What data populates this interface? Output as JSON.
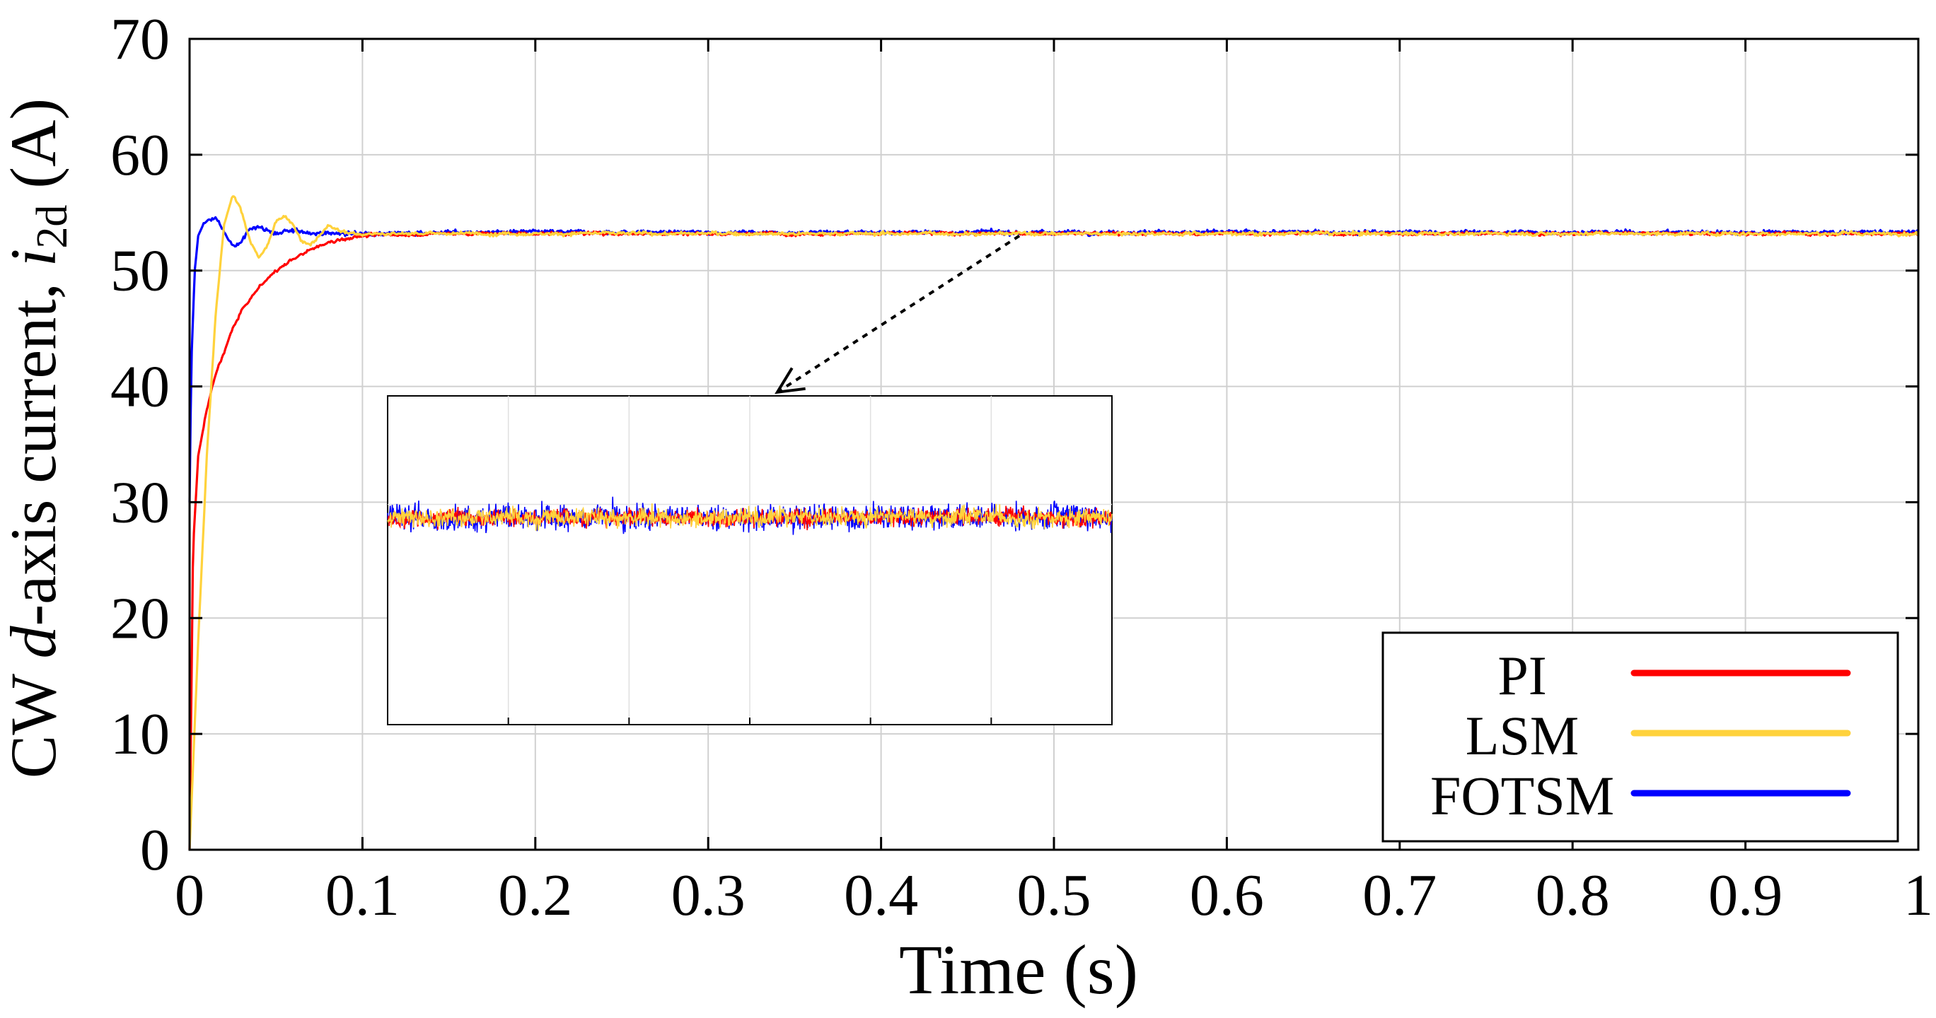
{
  "chart_data": {
    "type": "line",
    "title": "",
    "xlabel": "Time (s)",
    "ylabel": {
      "prefix": "CW ",
      "italic_part": "d",
      "middle": "-axis current, ",
      "symbol": "i",
      "subscript": "2d",
      "suffix": " (A)"
    },
    "xlim": [
      0,
      1
    ],
    "ylim": [
      0,
      70
    ],
    "xticks": [
      0,
      0.1,
      0.2,
      0.3,
      0.4,
      0.5,
      0.6,
      0.7,
      0.8,
      0.9,
      1
    ],
    "xtick_labels": [
      "0",
      "0.1",
      "0.2",
      "0.3",
      "0.4",
      "0.5",
      "0.6",
      "0.7",
      "0.8",
      "0.9",
      "1"
    ],
    "yticks": [
      0,
      10,
      20,
      30,
      40,
      50,
      60,
      70
    ],
    "ytick_labels": [
      "0",
      "10",
      "20",
      "30",
      "40",
      "50",
      "60",
      "70"
    ],
    "grid": true,
    "legend_position": "bottom-right",
    "series": [
      {
        "name": "PI",
        "color": "#ff0000",
        "x": [
          0,
          0.002,
          0.005,
          0.01,
          0.015,
          0.02,
          0.025,
          0.03,
          0.04,
          0.05,
          0.06,
          0.07,
          0.08,
          0.09,
          0.1,
          0.12,
          0.15,
          0.2,
          0.3,
          0.4,
          0.5,
          0.6,
          0.7,
          0.8,
          0.9,
          1.0
        ],
        "values": [
          0,
          26,
          34,
          38,
          41,
          43,
          45,
          46.5,
          48.5,
          50,
          51,
          51.8,
          52.4,
          52.8,
          53,
          53.1,
          53.2,
          53.2,
          53.2,
          53.2,
          53.2,
          53.2,
          53.2,
          53.2,
          53.2,
          53.2
        ],
        "steady_state": 53.2
      },
      {
        "name": "LSM",
        "color": "#ffd23c",
        "x": [
          0,
          0.005,
          0.01,
          0.015,
          0.02,
          0.025,
          0.03,
          0.035,
          0.04,
          0.045,
          0.05,
          0.055,
          0.06,
          0.065,
          0.07,
          0.075,
          0.08,
          0.09,
          0.1,
          0.12,
          0.15,
          0.2,
          0.3,
          0.4,
          0.5,
          0.6,
          0.7,
          0.8,
          0.9,
          1.0
        ],
        "values": [
          0,
          18,
          34,
          46,
          54,
          56.6,
          55.2,
          52.5,
          51.2,
          52.2,
          54.2,
          54.7,
          53.8,
          52.6,
          52.3,
          53,
          53.9,
          53.3,
          53.2,
          53.2,
          53.2,
          53.2,
          53.2,
          53.2,
          53.2,
          53.2,
          53.2,
          53.2,
          53.2,
          53.2
        ],
        "steady_state": 53.2
      },
      {
        "name": "FOTSM",
        "color": "#0000ff",
        "x": [
          0,
          0.001,
          0.003,
          0.005,
          0.008,
          0.012,
          0.015,
          0.018,
          0.022,
          0.026,
          0.03,
          0.035,
          0.04,
          0.05,
          0.06,
          0.08,
          0.1,
          0.15,
          0.2,
          0.3,
          0.4,
          0.5,
          0.6,
          0.7,
          0.8,
          0.9,
          1.0
        ],
        "values": [
          30,
          42,
          50,
          53,
          54,
          54.4,
          54.5,
          53.9,
          52.8,
          52,
          52.5,
          53.6,
          53.8,
          53.2,
          53.4,
          53.2,
          53.2,
          53.3,
          53.3,
          53.3,
          53.3,
          53.3,
          53.3,
          53.3,
          53.3,
          53.3,
          53.3
        ],
        "steady_state": 53.3
      }
    ],
    "annotations": [
      {
        "type": "arrow",
        "style": "dotted",
        "from": [
          0.48,
          53
        ],
        "to": [
          0.34,
          39.5
        ],
        "target": "inset zoom"
      }
    ],
    "inset": {
      "description": "zoomed steady-state region",
      "series_order": [
        "FOTSM",
        "PI",
        "LSM"
      ],
      "center_level": 0.5,
      "vertical_grid_count": 6
    }
  }
}
